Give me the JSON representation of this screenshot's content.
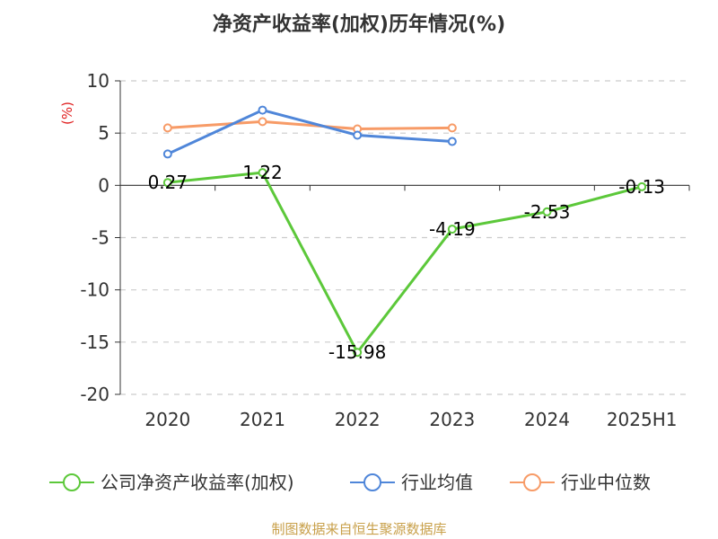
{
  "chart_data": {
    "type": "line",
    "title": "净资产收益率(加权)历年情况(%)",
    "ylabel": "(%)",
    "xlabel": "",
    "categories": [
      "2020",
      "2021",
      "2022",
      "2023",
      "2024",
      "2025H1"
    ],
    "ylim": [
      -20,
      10
    ],
    "yticks": [
      10,
      5,
      0,
      -5,
      -10,
      -15,
      -20
    ],
    "grid": true,
    "legend_position": "bottom",
    "series": [
      {
        "name": "公司净资产收益率(加权)",
        "color": "#5cc83a",
        "values": [
          0.27,
          1.22,
          -15.98,
          -4.19,
          -2.53,
          -0.13
        ],
        "data_labels": [
          "0.27",
          "1.22",
          "-15.98",
          "-4.19",
          "-2.53",
          "-0.13"
        ]
      },
      {
        "name": "行业均值",
        "color": "#4f86d9",
        "values": [
          3.0,
          7.2,
          4.8,
          4.2,
          null,
          null
        ]
      },
      {
        "name": "行业中位数",
        "color": "#f79b67",
        "values": [
          5.5,
          6.1,
          5.4,
          5.5,
          null,
          null
        ]
      }
    ],
    "source": "制图数据来自恒生聚源数据库"
  }
}
